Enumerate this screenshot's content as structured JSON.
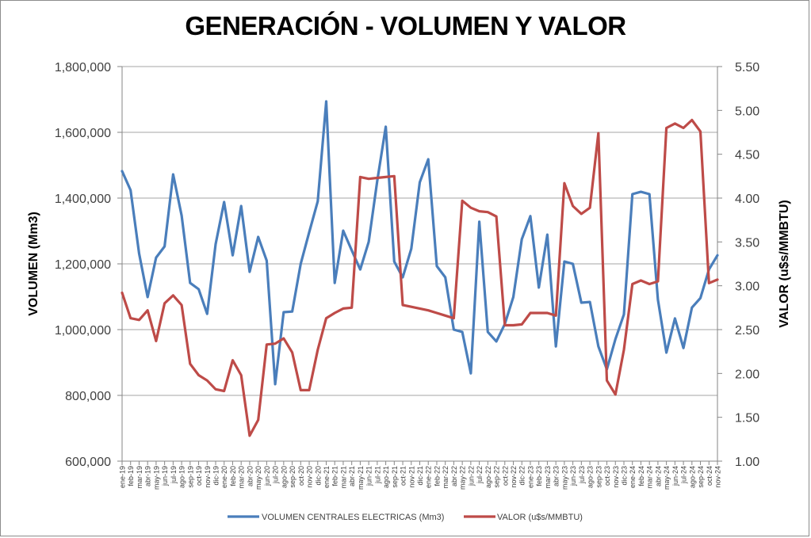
{
  "chart_data": {
    "type": "line",
    "title": "GENERACIÓN - VOLUMEN Y VALOR",
    "ylabel": "VOLUMEN (Mm3)",
    "y2label": "VALOR (u$s/MMBTU)",
    "ylim": [
      600000,
      1800000
    ],
    "y2lim": [
      1.0,
      5.5
    ],
    "yticks": [
      "600,000",
      "800,000",
      "1,000,000",
      "1,200,000",
      "1,400,000",
      "1,600,000",
      "1,800,000"
    ],
    "y2ticks": [
      "1.00",
      "1.50",
      "2.00",
      "2.50",
      "3.00",
      "3.50",
      "4.00",
      "4.50",
      "5.00",
      "5.50"
    ],
    "grid": true,
    "legend_position": "bottom",
    "categories": [
      "ene-19",
      "feb-19",
      "mar-19",
      "abr-19",
      "may-19",
      "jun-19",
      "jul-19",
      "ago-19",
      "sep-19",
      "oct-19",
      "nov-19",
      "dic-19",
      "ene-20",
      "feb-20",
      "mar-20",
      "abr-20",
      "may-20",
      "jun-20",
      "jul-20",
      "ago-20",
      "sep-20",
      "oct-20",
      "nov-20",
      "dic-20",
      "ene-21",
      "feb-21",
      "mar-21",
      "abr-21",
      "may-21",
      "jun-21",
      "jul-21",
      "ago-21",
      "sep-21",
      "oct-21",
      "nov-21",
      "dic-21",
      "ene-22",
      "feb-22",
      "mar-22",
      "abr-22",
      "may-22",
      "jun-22",
      "jul-22",
      "ago-22",
      "sep-22",
      "oct-22",
      "nov-22",
      "dic-22",
      "ene-23",
      "feb-23",
      "mar-23",
      "abr-23",
      "may-23",
      "jun-23",
      "jul-23",
      "ago-23",
      "sep-23",
      "oct-23",
      "nov-23",
      "dic-23",
      "ene-24",
      "feb-24",
      "mar-24",
      "abr-24",
      "may-24",
      "jun-24",
      "jul-24",
      "ago-24",
      "sep-24",
      "oct-24",
      "nov-24"
    ],
    "series": [
      {
        "name": "VOLUMEN CENTRALES ELECTRICAS (Mm3)",
        "axis": "left",
        "color": "#4a7ebb",
        "values": [
          1482000,
          1424000,
          1231000,
          1099000,
          1219000,
          1253000,
          1472000,
          1347000,
          1142000,
          1123000,
          1048000,
          1260000,
          1388000,
          1226000,
          1376000,
          1176000,
          1282000,
          1210000,
          834000,
          1053000,
          1055000,
          1200000,
          1296000,
          1390000,
          1694000,
          1142000,
          1301000,
          1241000,
          1183000,
          1267000,
          1453000,
          1617000,
          1207000,
          1159000,
          1246000,
          1448000,
          1518000,
          1193000,
          1159000,
          1000000,
          993000,
          867000,
          1328000,
          993000,
          964000,
          1017000,
          1099000,
          1275000,
          1345000,
          1128000,
          1289000,
          949000,
          1207000,
          1200000,
          1082000,
          1084000,
          949000,
          879000,
          971000,
          1046000,
          1412000,
          1419000,
          1412000,
          1091000,
          930000,
          1034000,
          944000,
          1067000,
          1096000,
          1183000,
          1226000
        ]
      },
      {
        "name": "VALOR (u$s/MMBTU)",
        "axis": "right",
        "color": "#be4b48",
        "values": [
          2.92,
          2.63,
          2.61,
          2.72,
          2.37,
          2.8,
          2.89,
          2.78,
          2.11,
          1.98,
          1.92,
          1.82,
          1.8,
          2.15,
          1.98,
          1.29,
          1.47,
          2.33,
          2.34,
          2.4,
          2.24,
          1.81,
          1.81,
          2.27,
          2.63,
          2.69,
          2.74,
          2.75,
          4.24,
          4.22,
          4.23,
          4.24,
          4.25,
          2.78,
          2.76,
          2.74,
          2.72,
          2.69,
          2.66,
          2.63,
          3.97,
          3.89,
          3.85,
          3.84,
          3.79,
          2.55,
          2.55,
          2.56,
          2.69,
          2.69,
          2.69,
          2.66,
          4.17,
          3.91,
          3.82,
          3.89,
          4.74,
          1.92,
          1.76,
          2.27,
          3.02,
          3.06,
          3.02,
          3.05,
          4.8,
          4.85,
          4.8,
          4.89,
          4.76,
          3.03,
          3.07
        ]
      }
    ]
  }
}
